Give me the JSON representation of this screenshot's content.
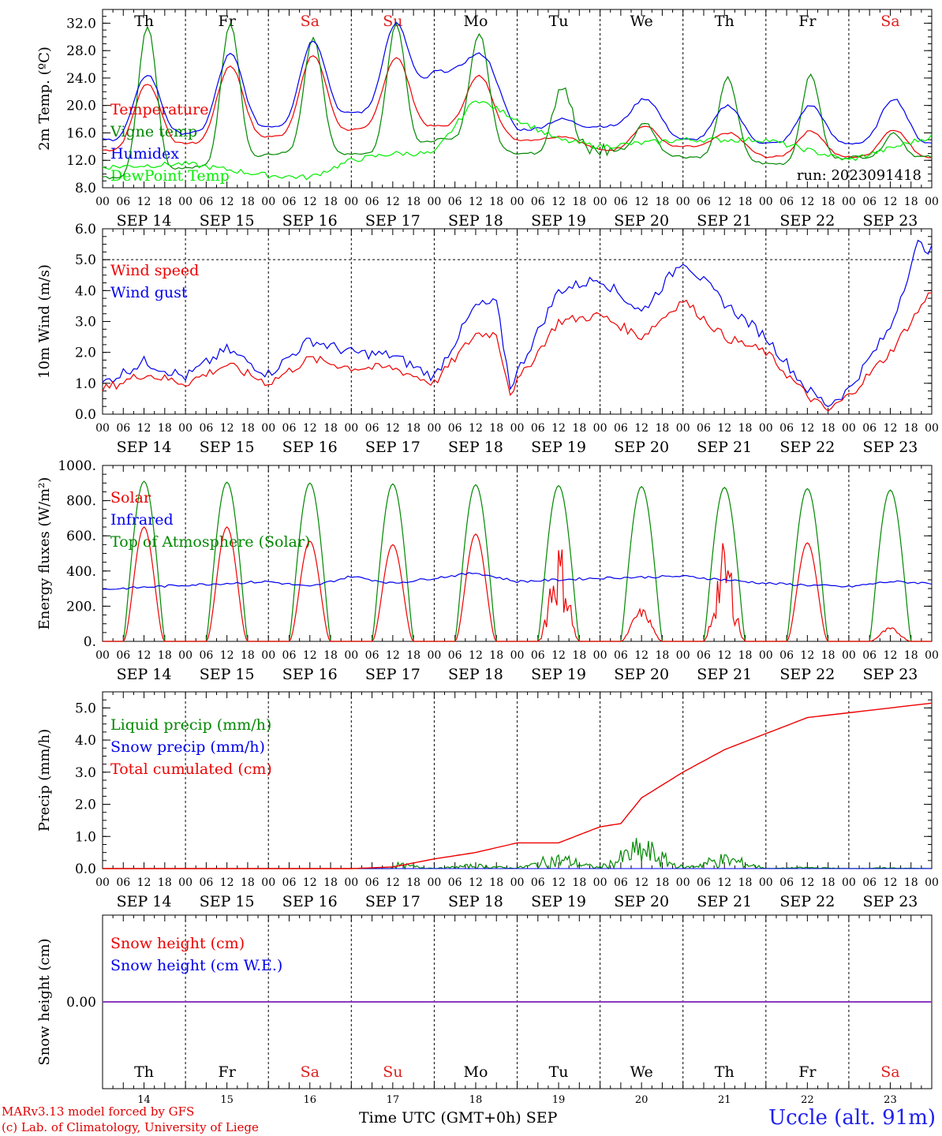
{
  "chart_data": [
    {
      "type": "line",
      "ylabel": "2m Temp. (ºC)",
      "ylim": [
        8,
        34
      ],
      "yticks": [
        "8.0",
        "12.0",
        "16.0",
        "20.0",
        "24.0",
        "28.0",
        "32.0"
      ],
      "run_label": "run: 2023091418",
      "series": [
        {
          "name": "Temperature",
          "color": "#ee0000"
        },
        {
          "name": "Vigne temp",
          "color": "#008800"
        },
        {
          "name": "Humidex",
          "color": "#0000ee"
        },
        {
          "name": "DewPoint Temp",
          "color": "#00ee00"
        }
      ]
    },
    {
      "type": "line",
      "ylabel": "10m Wind (m/s)",
      "ylim": [
        0,
        6
      ],
      "yticks": [
        "0.0",
        "1.0",
        "2.0",
        "3.0",
        "4.0",
        "5.0",
        "6.0"
      ],
      "reference_line": 5.0,
      "series": [
        {
          "name": "Wind speed",
          "color": "#ee0000"
        },
        {
          "name": "Wind gust",
          "color": "#0000ee"
        }
      ]
    },
    {
      "type": "line",
      "ylabel": "Energy fluxes (W/m²)",
      "ylim": [
        0,
        1000
      ],
      "yticks": [
        "0.",
        "200.",
        "400.",
        "600.",
        "800.",
        "1000."
      ],
      "series": [
        {
          "name": "Solar",
          "color": "#ee0000",
          "daily_peaks": [
            650,
            650,
            570,
            550,
            610,
            590,
            190,
            570,
            560,
            80
          ]
        },
        {
          "name": "Infrared",
          "color": "#0000ee"
        },
        {
          "name": "Top of Atmosphere (Solar)",
          "color": "#008800",
          "daily_peaks": [
            910,
            905,
            900,
            895,
            890,
            885,
            880,
            875,
            868,
            860
          ]
        }
      ]
    },
    {
      "type": "line",
      "ylabel": "Precip (mm/h)",
      "ylim": [
        0,
        5.5
      ],
      "yticks": [
        "0.0",
        "1.0",
        "2.0",
        "3.0",
        "4.0",
        "5.0"
      ],
      "series": [
        {
          "name": "Liquid precip (mm/h)",
          "color": "#008800"
        },
        {
          "name": "Snow precip (mm/h)",
          "color": "#0000ee"
        },
        {
          "name": "Total cumulated (cm)",
          "color": "#ee0000",
          "x": [
            0,
            72,
            84,
            96,
            108,
            120,
            132,
            144,
            150,
            156,
            168,
            180,
            192,
            204,
            216,
            240
          ],
          "y": [
            0,
            0,
            0.05,
            0.3,
            0.5,
            0.8,
            0.8,
            1.3,
            1.4,
            2.2,
            3.0,
            3.7,
            4.2,
            4.7,
            4.85,
            5.15
          ]
        }
      ]
    },
    {
      "type": "line",
      "ylabel": "Snow height (cm)",
      "yticks": [
        "0.00"
      ],
      "series": [
        {
          "name": "Snow height (cm)",
          "color": "#ee0000"
        },
        {
          "name": "Snow height (cm W.E.)",
          "color": "#0000ee"
        }
      ]
    }
  ],
  "days": [
    {
      "abbr": "Th",
      "date": "SEP 14",
      "num": "14",
      "weekend": false
    },
    {
      "abbr": "Fr",
      "date": "SEP 15",
      "num": "15",
      "weekend": false
    },
    {
      "abbr": "Sa",
      "date": "SEP 16",
      "num": "16",
      "weekend": true
    },
    {
      "abbr": "Su",
      "date": "SEP 17",
      "num": "17",
      "weekend": true
    },
    {
      "abbr": "Mo",
      "date": "SEP 18",
      "num": "18",
      "weekend": false
    },
    {
      "abbr": "Tu",
      "date": "SEP 19",
      "num": "19",
      "weekend": false
    },
    {
      "abbr": "We",
      "date": "SEP 20",
      "num": "20",
      "weekend": false
    },
    {
      "abbr": "Th",
      "date": "SEP 21",
      "num": "21",
      "weekend": false
    },
    {
      "abbr": "Fr",
      "date": "SEP 22",
      "num": "22",
      "weekend": false
    },
    {
      "abbr": "Sa",
      "date": "SEP 23",
      "num": "23",
      "weekend": true
    }
  ],
  "hour_labels": [
    "00",
    "06",
    "12",
    "18"
  ],
  "hour_end_label": "00",
  "footer": {
    "model_line": "MARv3.13 model forced by GFS",
    "credit_line": "(c) Lab. of Climatology, University of Liege",
    "axis_title": "Time UTC (GMT+0h) SEP",
    "station": "Uccle (alt. 91m)"
  },
  "colors": {
    "red": "#ee0000",
    "green": "#008800",
    "blue": "#0000ee",
    "lightgreen": "#00ee00",
    "weekend": "#e02020",
    "snow_line": "#8a3bbd"
  }
}
